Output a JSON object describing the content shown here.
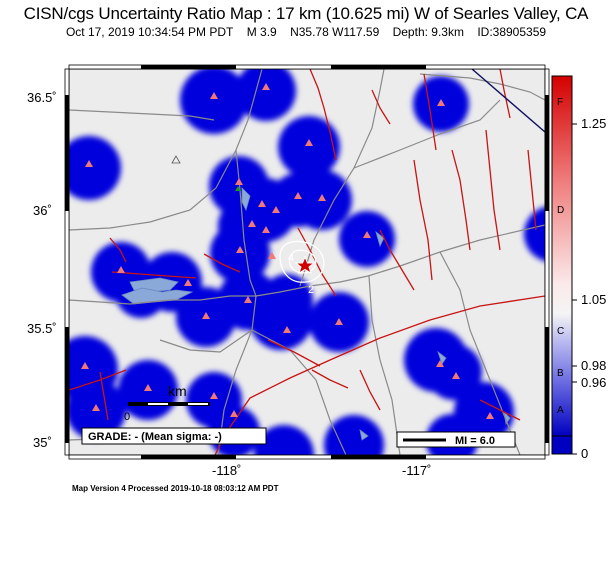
{
  "header": {
    "title": "CISN/cgs Uncertainty Ratio Map : 17 km (10.625 mi) W of Searles Valley, CA",
    "datetime": "Oct 17, 2019 10:34:54 PM PDT",
    "magnitude": "M 3.9",
    "location": "N35.78 W117.59",
    "depth": "Depth: 9.3km",
    "event_id": "ID:38905359"
  },
  "axes": {
    "lat_labels": [
      "36.5˚",
      "36˚",
      "35.5˚",
      "35˚"
    ],
    "lon_labels": [
      "-118˚",
      "-117˚"
    ]
  },
  "scale_bar": {
    "title": "km",
    "zero": "0"
  },
  "grade_label": "GRADE: - (Mean sigma: -)",
  "legend": {
    "mi_label": "MI = 6.0"
  },
  "colorbar": {
    "ticks": [
      "1.25",
      "1.05",
      "0.98",
      "0.96",
      "0"
    ],
    "grades": [
      "F",
      "D",
      "C",
      "B",
      "A"
    ],
    "colors": {
      "top": "#e00000",
      "mid": "#f4f4f4",
      "bottom": "#0000c8"
    }
  },
  "contour_labels": [
    "4",
    "2"
  ],
  "footer": "Map Version 4 Processed 2019-10-18 08:03:12 AM PDT",
  "colors": {
    "land": "#ececec",
    "coverage": "#0000dd",
    "fault": "#c81414",
    "road": "#8a8a8a",
    "station": "#f07878",
    "epicenter": "#d00000",
    "water": "#8aa8d8"
  }
}
